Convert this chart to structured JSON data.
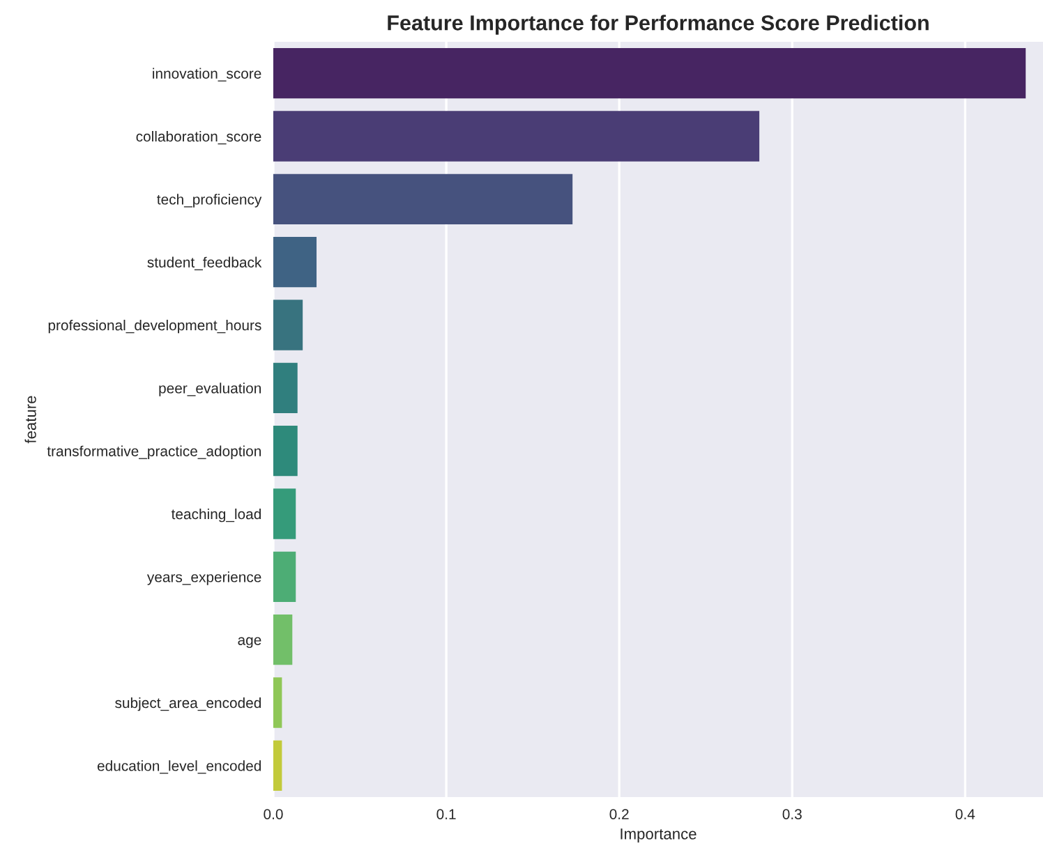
{
  "chart_data": {
    "type": "bar",
    "orientation": "horizontal",
    "title": "Feature Importance for Performance Score Prediction",
    "xlabel": "Importance",
    "ylabel": "feature",
    "categories": [
      "innovation_score",
      "collaboration_score",
      "tech_proficiency",
      "student_feedback",
      "professional_development_hours",
      "peer_evaluation",
      "transformative_practice_adoption",
      "teaching_load",
      "years_experience",
      "age",
      "subject_area_encoded",
      "education_level_encoded"
    ],
    "values": [
      0.435,
      0.281,
      0.173,
      0.025,
      0.017,
      0.014,
      0.014,
      0.013,
      0.013,
      0.011,
      0.005,
      0.005
    ],
    "colors": [
      "#472562",
      "#4a3d75",
      "#46527e",
      "#3f6384",
      "#38737f",
      "#307f7e",
      "#2e8a7b",
      "#359b7a",
      "#4dad75",
      "#72bf69",
      "#8fc757",
      "#c2ca3b"
    ],
    "xlim": [
      0,
      0.445
    ],
    "xticks": [
      {
        "value": 0.0,
        "label": "0.0"
      },
      {
        "value": 0.1,
        "label": "0.1"
      },
      {
        "value": 0.2,
        "label": "0.2"
      },
      {
        "value": 0.3,
        "label": "0.3"
      },
      {
        "value": 0.4,
        "label": "0.4"
      }
    ],
    "grid": "x"
  }
}
